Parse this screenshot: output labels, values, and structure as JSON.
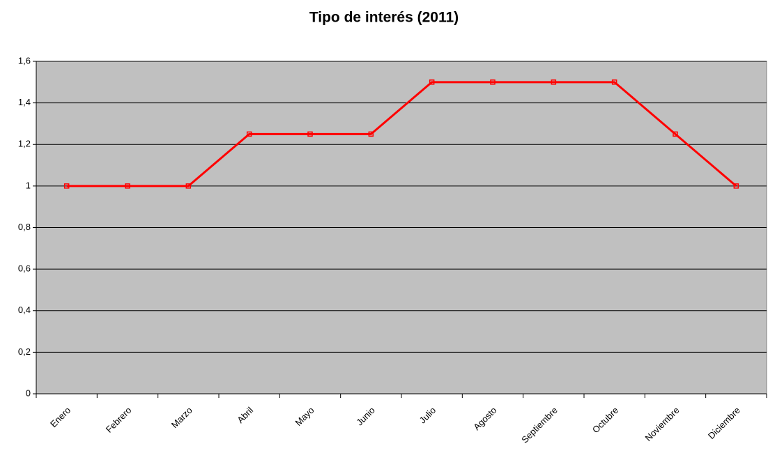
{
  "chart_data": {
    "type": "line",
    "title": "Tipo de interés (2011)",
    "categories": [
      "Enero",
      "Febrero",
      "Marzo",
      "Abril",
      "Mayo",
      "Junio",
      "Julio",
      "Agosto",
      "Septiembre",
      "Octubre",
      "Noviembre",
      "Diciembre"
    ],
    "series": [
      {
        "color": "#ff0000",
        "values": [
          1,
          1,
          1,
          1.25,
          1.25,
          1.25,
          1.5,
          1.5,
          1.5,
          1.5,
          1.25,
          1
        ]
      }
    ],
    "ylim": [
      0,
      1.6
    ],
    "yticks": [
      0,
      {
        "value": 0.2,
        "label": "0,2"
      },
      {
        "value": 0.4,
        "label": "0,4"
      },
      {
        "value": 0.6,
        "label": "0,6"
      },
      {
        "value": 0.8,
        "label": "0,8"
      },
      1,
      {
        "value": 1.2,
        "label": "1,2"
      },
      {
        "value": 1.4,
        "label": "1,4"
      },
      {
        "value": 1.6,
        "label": "1,6"
      }
    ],
    "grid": true,
    "plot_background": "#c0c0c0"
  }
}
